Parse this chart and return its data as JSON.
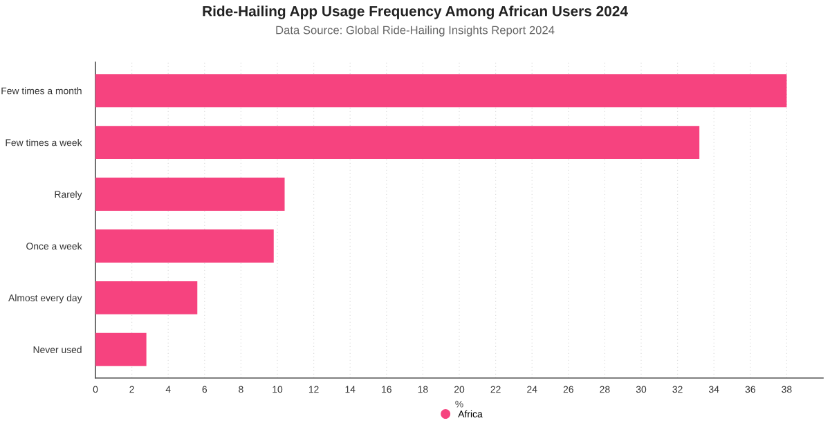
{
  "chart_data": {
    "type": "bar",
    "orientation": "horizontal",
    "title": "Ride-Hailing App Usage Frequency Among African Users 2024",
    "subtitle": "Data Source: Global Ride-Hailing Insights Report 2024",
    "xlabel": "%",
    "categories": [
      "Few times a month",
      "Few times a week",
      "Rarely",
      "Once a week",
      "Almost every day",
      "Never used"
    ],
    "series": [
      {
        "name": "Africa",
        "color": "#f6437f",
        "values": [
          38.0,
          33.2,
          10.4,
          9.8,
          5.6,
          2.8
        ]
      }
    ],
    "xlim": [
      0,
      40
    ],
    "xticks": [
      0,
      2,
      4,
      6,
      8,
      10,
      12,
      14,
      16,
      18,
      20,
      22,
      24,
      26,
      28,
      30,
      32,
      34,
      36,
      38
    ],
    "grid": "x",
    "legend": "bottom"
  }
}
